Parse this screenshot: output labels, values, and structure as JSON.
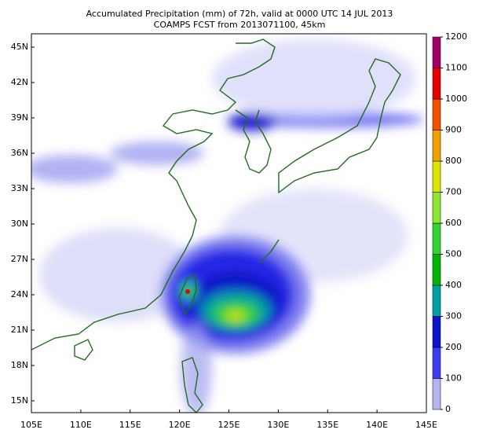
{
  "header": {
    "line1": "Accumulated Precipitation (mm) of 72h, valid at 0000 UTC 14 JUL 2013",
    "line2": "COAMPS FCST from 2013071100, 45km"
  },
  "map": {
    "lon_ticks": [
      {
        "value": 105,
        "label": "105E"
      },
      {
        "value": 110,
        "label": "110E"
      },
      {
        "value": 115,
        "label": "115E"
      },
      {
        "value": 120,
        "label": "120E"
      },
      {
        "value": 125,
        "label": "125E"
      },
      {
        "value": 130,
        "label": "130E"
      },
      {
        "value": 135,
        "label": "135E"
      },
      {
        "value": 140,
        "label": "140E"
      },
      {
        "value": 145,
        "label": "145E"
      }
    ],
    "lat_ticks": [
      {
        "value": 45,
        "label": "45N"
      },
      {
        "value": 42,
        "label": "42N"
      },
      {
        "value": 39,
        "label": "39N"
      },
      {
        "value": 36,
        "label": "36N"
      },
      {
        "value": 33,
        "label": "33N"
      },
      {
        "value": 30,
        "label": "30N"
      },
      {
        "value": 27,
        "label": "27N"
      },
      {
        "value": 24,
        "label": "24N"
      },
      {
        "value": 21,
        "label": "21N"
      },
      {
        "value": 18,
        "label": "18N"
      },
      {
        "value": 15,
        "label": "15N"
      }
    ]
  },
  "colorbar": {
    "ticks": [
      0,
      100,
      200,
      300,
      400,
      500,
      600,
      700,
      800,
      900,
      1000,
      1100,
      1200
    ],
    "colors": [
      "#b4b4f0",
      "#3c3cf0",
      "#0a14c8",
      "#00a0a0",
      "#00b400",
      "#32d232",
      "#8ce632",
      "#dce600",
      "#f0a000",
      "#f05000",
      "#e60000",
      "#a00064"
    ]
  }
}
